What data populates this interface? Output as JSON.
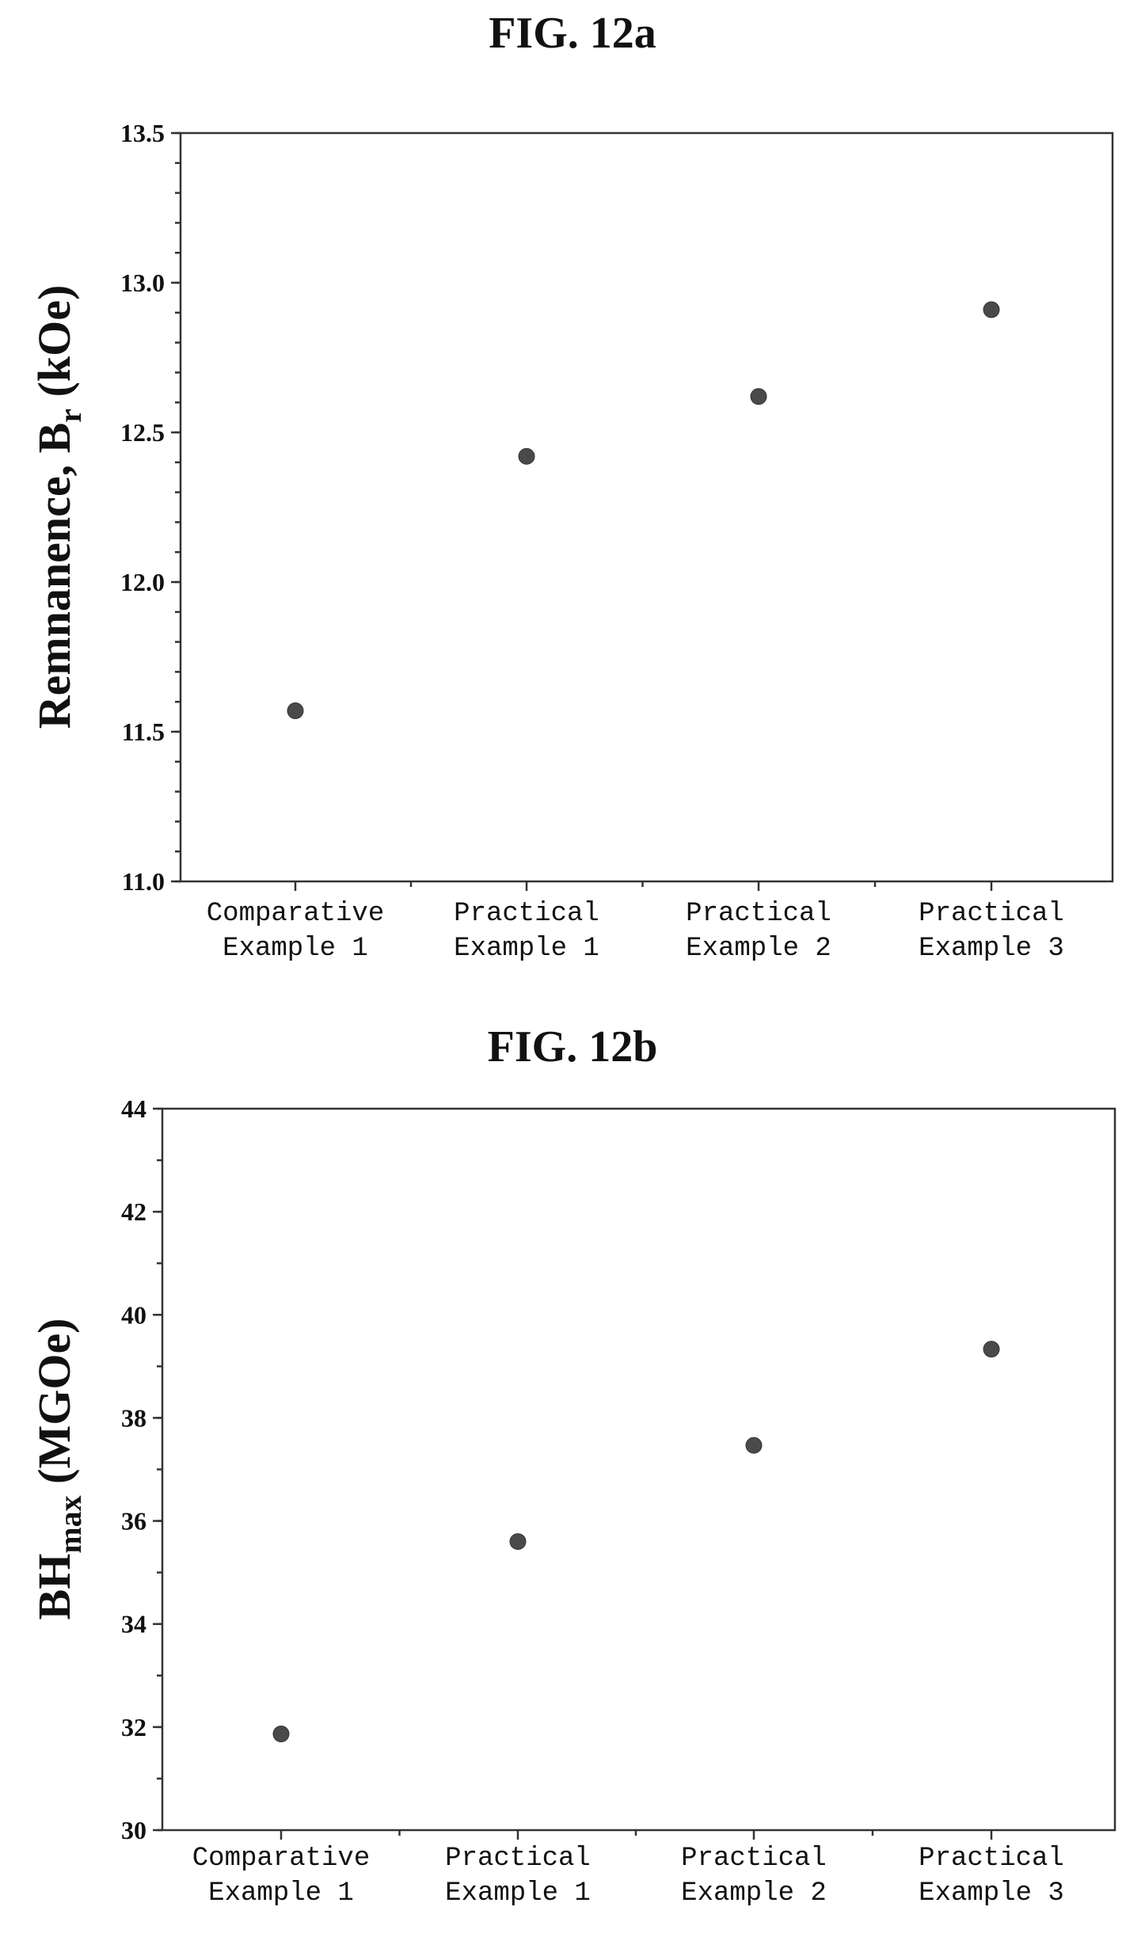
{
  "chart_data": [
    {
      "type": "scatter",
      "title": "FIG. 12a",
      "ylabel": "Remnanence, B",
      "ylabel_subscript": "r",
      "ylabel_suffix": " (kOe)",
      "ylim": [
        11.0,
        13.5
      ],
      "yticks": [
        "11.0",
        "11.5",
        "12.0",
        "12.5",
        "13.0",
        "13.5"
      ],
      "categories": [
        [
          "Comparative",
          "Example 1"
        ],
        [
          "Practical",
          "Example 1"
        ],
        [
          "Practical",
          "Example 2"
        ],
        [
          "Practical",
          "Example 3"
        ]
      ],
      "values": [
        11.57,
        12.42,
        12.62,
        12.91
      ],
      "grid": false,
      "marker_color": "#4a4a4a"
    },
    {
      "type": "scatter",
      "title": "FIG. 12b",
      "ylabel": "BH",
      "ylabel_subscript": "max",
      "ylabel_suffix": " (MGOe)",
      "ylim": [
        30,
        45
      ],
      "yticks": [
        "30",
        "32",
        "34",
        "36",
        "38",
        "40",
        "42",
        "44"
      ],
      "categories": [
        [
          "Comparative",
          "Example 1"
        ],
        [
          "Practical",
          "Example 1"
        ],
        [
          "Practical",
          "Example 2"
        ],
        [
          "Practical",
          "Example 3"
        ]
      ],
      "values": [
        32,
        36,
        38,
        40
      ],
      "grid": false,
      "marker_color": "#4a4a4a"
    }
  ]
}
